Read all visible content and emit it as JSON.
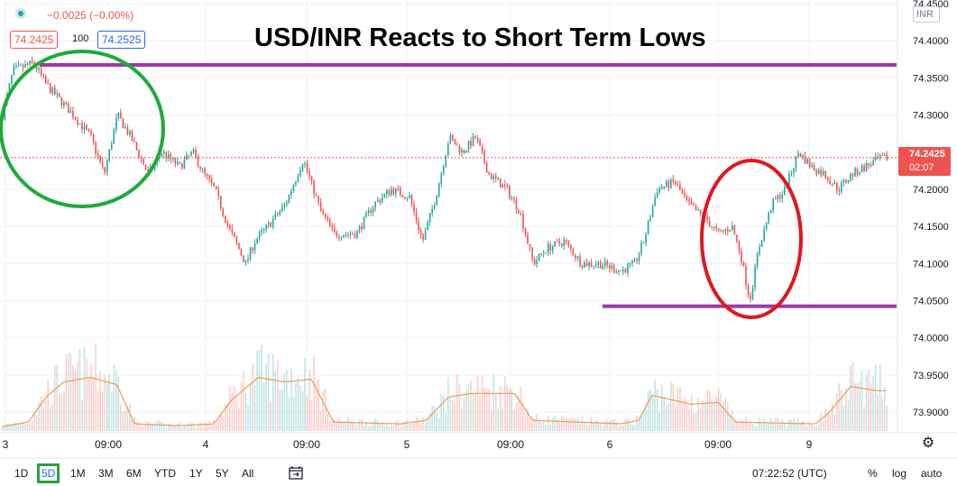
{
  "header": {
    "change_text": "−0.0025 (−0.00%)",
    "bid": "74.2425",
    "spread": "100",
    "ask": "74.2525",
    "title": "USD/INR Reacts to Short Term Lows",
    "currency": "INR"
  },
  "price_tag": {
    "price": "74.2425",
    "countdown": "02:07"
  },
  "bottom_bar": {
    "timeframes": [
      "1D",
      "5D",
      "1M",
      "3M",
      "6M",
      "YTD",
      "1Y",
      "5Y",
      "All"
    ],
    "selected": "5D",
    "clock": "07:22:52 (UTC)",
    "options": [
      "%",
      "log",
      "auto"
    ]
  },
  "colors": {
    "up": "#26a69a",
    "down": "#ef5350",
    "level_line": "#9b3ba0",
    "green_circle": "#1eaa3c",
    "red_circle": "#e0171f",
    "volume_ma": "#f0a060"
  },
  "chart_data": {
    "type": "candlestick",
    "symbol": "USD/INR",
    "y_axis_labels": [
      "74.4500",
      "74.4000",
      "74.3500",
      "74.3000",
      "74.2500",
      "74.2000",
      "74.1500",
      "74.1000",
      "74.0500",
      "74.0000",
      "73.9500",
      "73.9000"
    ],
    "ylim": [
      73.88,
      74.45
    ],
    "x_axis_labels": [
      "3",
      "09:00",
      "4",
      "09:00",
      "5",
      "09:00",
      "6",
      "09:00",
      "9"
    ],
    "current_price": 74.2425,
    "horizontal_levels": [
      74.3675,
      74.0425
    ],
    "annotations": [
      "green circle around session high of day 3",
      "red circle around short term low of day 6"
    ],
    "price_path": [
      [
        0,
        74.3
      ],
      [
        0.012,
        74.36
      ],
      [
        0.035,
        74.37
      ],
      [
        0.05,
        74.34
      ],
      [
        0.08,
        74.3
      ],
      [
        0.1,
        74.27
      ],
      [
        0.115,
        74.22
      ],
      [
        0.13,
        74.3
      ],
      [
        0.145,
        74.27
      ],
      [
        0.165,
        74.22
      ],
      [
        0.18,
        74.25
      ],
      [
        0.2,
        74.23
      ],
      [
        0.215,
        74.25
      ],
      [
        0.228,
        74.22
      ],
      [
        0.24,
        74.2
      ],
      [
        0.255,
        74.15
      ],
      [
        0.275,
        74.1
      ],
      [
        0.285,
        74.13
      ],
      [
        0.3,
        74.15
      ],
      [
        0.32,
        74.18
      ],
      [
        0.34,
        74.24
      ],
      [
        0.36,
        74.17
      ],
      [
        0.375,
        74.14
      ],
      [
        0.4,
        74.14
      ],
      [
        0.42,
        74.18
      ],
      [
        0.44,
        74.2
      ],
      [
        0.46,
        74.19
      ],
      [
        0.475,
        74.13
      ],
      [
        0.49,
        74.19
      ],
      [
        0.505,
        74.27
      ],
      [
        0.52,
        74.25
      ],
      [
        0.535,
        74.27
      ],
      [
        0.55,
        74.22
      ],
      [
        0.57,
        74.2
      ],
      [
        0.585,
        74.17
      ],
      [
        0.6,
        74.1
      ],
      [
        0.615,
        74.12
      ],
      [
        0.635,
        74.13
      ],
      [
        0.655,
        74.1
      ],
      [
        0.675,
        74.1
      ],
      [
        0.7,
        74.09
      ],
      [
        0.715,
        74.1
      ],
      [
        0.725,
        74.13
      ],
      [
        0.74,
        74.2
      ],
      [
        0.76,
        74.21
      ],
      [
        0.775,
        74.18
      ],
      [
        0.795,
        74.16
      ],
      [
        0.81,
        74.14
      ],
      [
        0.825,
        74.15
      ],
      [
        0.835,
        74.11
      ],
      [
        0.845,
        74.05
      ],
      [
        0.855,
        74.12
      ],
      [
        0.87,
        74.18
      ],
      [
        0.885,
        74.2
      ],
      [
        0.9,
        74.25
      ],
      [
        0.915,
        74.23
      ],
      [
        0.93,
        74.22
      ],
      [
        0.945,
        74.2
      ],
      [
        0.96,
        74.22
      ],
      [
        0.975,
        74.23
      ],
      [
        0.99,
        74.24
      ],
      [
        1.0,
        74.2425
      ]
    ],
    "volume_profile": [
      [
        0,
        0.05
      ],
      [
        0.03,
        0.1
      ],
      [
        0.05,
        0.38
      ],
      [
        0.07,
        0.55
      ],
      [
        0.1,
        0.6
      ],
      [
        0.13,
        0.52
      ],
      [
        0.15,
        0.08
      ],
      [
        0.2,
        0.06
      ],
      [
        0.24,
        0.08
      ],
      [
        0.26,
        0.35
      ],
      [
        0.29,
        0.6
      ],
      [
        0.32,
        0.55
      ],
      [
        0.35,
        0.58
      ],
      [
        0.375,
        0.1
      ],
      [
        0.45,
        0.08
      ],
      [
        0.48,
        0.12
      ],
      [
        0.505,
        0.38
      ],
      [
        0.53,
        0.42
      ],
      [
        0.58,
        0.42
      ],
      [
        0.6,
        0.12
      ],
      [
        0.7,
        0.08
      ],
      [
        0.72,
        0.12
      ],
      [
        0.735,
        0.4
      ],
      [
        0.78,
        0.3
      ],
      [
        0.81,
        0.32
      ],
      [
        0.83,
        0.1
      ],
      [
        0.92,
        0.08
      ],
      [
        0.935,
        0.2
      ],
      [
        0.96,
        0.5
      ],
      [
        0.99,
        0.45
      ]
    ]
  }
}
